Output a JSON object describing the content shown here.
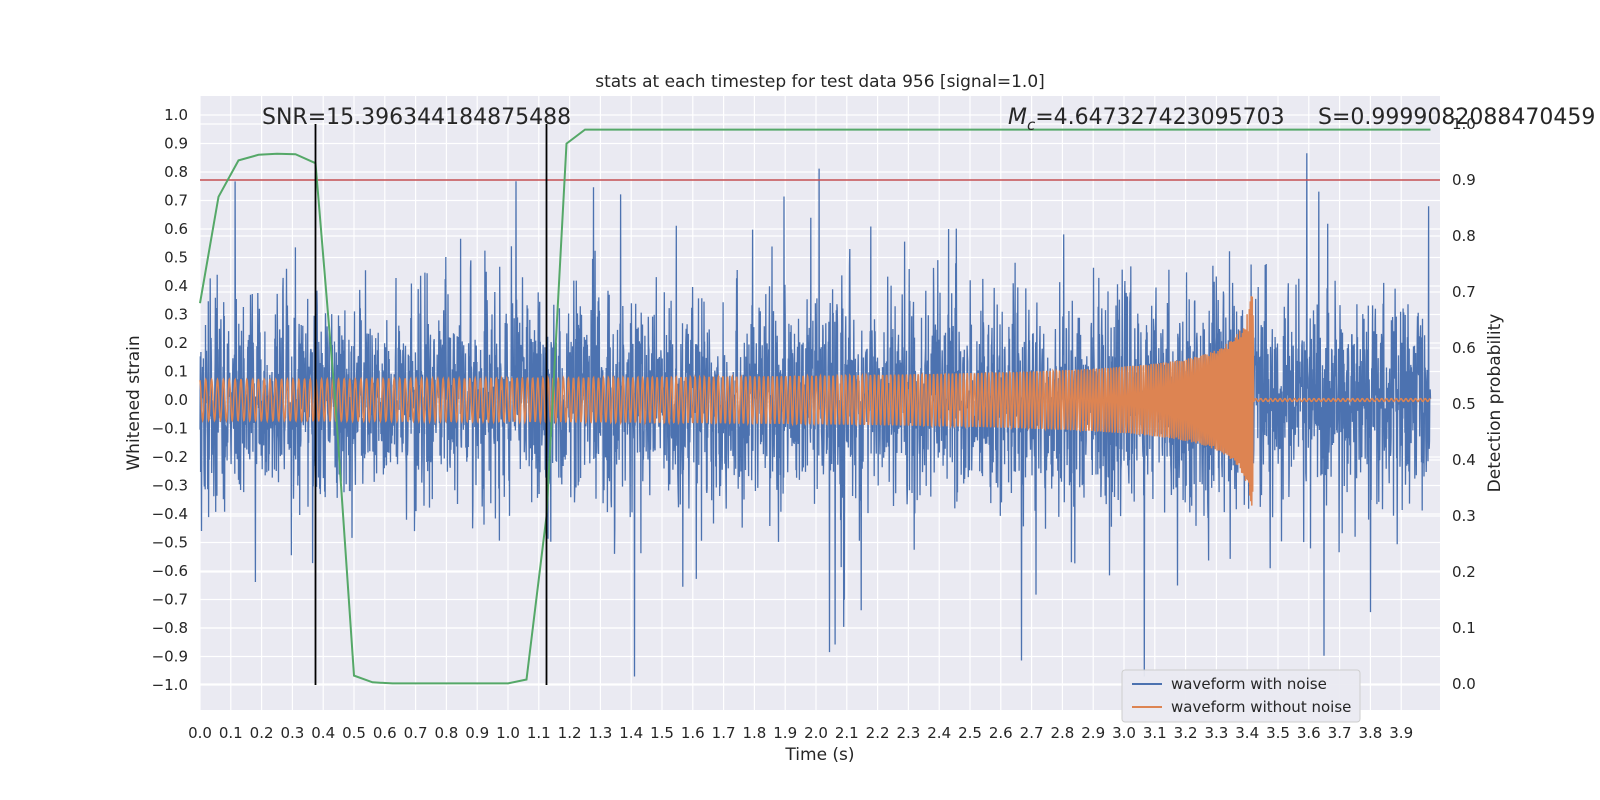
{
  "chart_data": {
    "type": "line",
    "title": "stats at each timestep for test data 956 [signal=1.0]",
    "xlabel": "Time (s)",
    "ylabel_left": "Whitened strain",
    "ylabel_right": "Detection probability",
    "xlim": [
      0.0,
      4.0
    ],
    "ylim_left": [
      -1.1,
      1.05
    ],
    "ylim_right": [
      -0.05,
      1.02
    ],
    "x_ticks": [
      0.0,
      0.1,
      0.2,
      0.3,
      0.4,
      0.5,
      0.6,
      0.7,
      0.8,
      0.9,
      1.0,
      1.1,
      1.2,
      1.3,
      1.4,
      1.5,
      1.6,
      1.7,
      1.8,
      1.9,
      2.0,
      2.1,
      2.2,
      2.3,
      2.4,
      2.5,
      2.6,
      2.7,
      2.8,
      2.9,
      3.0,
      3.1,
      3.2,
      3.3,
      3.4,
      3.5,
      3.6,
      3.7,
      3.8,
      3.9
    ],
    "x_tick_labels": [
      "0.0",
      "0.1",
      "0.2",
      "0.3",
      "0.4",
      "0.5",
      "0.6",
      "0.7",
      "0.8",
      "0.9",
      "1.0",
      "1.1",
      "1.2",
      "1.3",
      "1.4",
      "1.5",
      "1.6",
      "1.7",
      "1.8",
      "1.9",
      "2.0",
      "2.1",
      "2.2",
      "2.3",
      "2.4",
      "2.5",
      "2.6",
      "2.7",
      "2.8",
      "2.9",
      "3.0",
      "3.1",
      "3.2",
      "3.3",
      "3.4",
      "3.5",
      "3.6",
      "3.7",
      "3.8",
      "3.9"
    ],
    "y_ticks_left": [
      1.0,
      0.9,
      0.8,
      0.7,
      0.6,
      0.5,
      0.4,
      0.3,
      0.2,
      0.1,
      0.0,
      -0.1,
      -0.2,
      -0.3,
      -0.4,
      -0.5,
      -0.6,
      -0.7,
      -0.8,
      -0.9,
      -1.0
    ],
    "y_tick_labels_left": [
      "1.0",
      "0.9",
      "0.8",
      "0.7",
      "0.6",
      "0.5",
      "0.4",
      "0.3",
      "0.2",
      "0.1",
      "0.0",
      "−0.1",
      "−0.2",
      "−0.3",
      "−0.4",
      "−0.5",
      "−0.6",
      "−0.7",
      "−0.8",
      "−0.9",
      "−1.0"
    ],
    "y_ticks_right": [
      1.0,
      0.9,
      0.8,
      0.7,
      0.6,
      0.5,
      0.4,
      0.3,
      0.2,
      0.1,
      0.0
    ],
    "y_tick_labels_right": [
      "1.0",
      "0.9",
      "0.8",
      "0.7",
      "0.6",
      "0.5",
      "0.4",
      "0.3",
      "0.2",
      "0.1",
      "0.0"
    ],
    "grid": true,
    "legend_position": "bottom-right",
    "series": [
      {
        "name": "waveform with noise",
        "color": "#4c72b0",
        "axis": "left",
        "kind": "noise",
        "noise_amplitude_typical": 0.3,
        "noise_amplitude_max": 0.97
      },
      {
        "name": "waveform without noise",
        "color": "#dd8452",
        "axis": "left",
        "kind": "chirp",
        "amplitude_start": 0.05,
        "amplitude_end": 0.42,
        "merger_time": 3.42,
        "freq_start_hz": 30,
        "freq_end_hz": 250
      },
      {
        "name": "",
        "color": "#55a868",
        "axis": "right",
        "kind": "probability",
        "x": [
          0.0,
          0.06,
          0.125,
          0.19,
          0.25,
          0.31,
          0.375,
          0.44,
          0.5,
          0.56,
          0.625,
          0.69,
          0.75,
          0.81,
          0.875,
          0.94,
          1.0,
          1.06,
          1.125,
          1.19,
          1.25,
          1.31,
          4.0
        ],
        "y": [
          0.68,
          0.87,
          0.935,
          0.945,
          0.947,
          0.946,
          0.93,
          0.5,
          0.015,
          0.003,
          0.001,
          0.001,
          0.001,
          0.001,
          0.001,
          0.001,
          0.001,
          0.008,
          0.3,
          0.965,
          0.99,
          0.99,
          0.99
        ]
      }
    ],
    "threshold": {
      "value": 0.9,
      "axis": "right",
      "color": "#c44e52"
    },
    "event_lines": [
      0.375,
      1.125
    ],
    "annotations": {
      "snr": "SNR=15.396344184875488",
      "mc_symbol": "M",
      "mc_sub": "c",
      "mc_value": "=4.647327423095703",
      "s": "S=0.9999082088470459"
    }
  }
}
